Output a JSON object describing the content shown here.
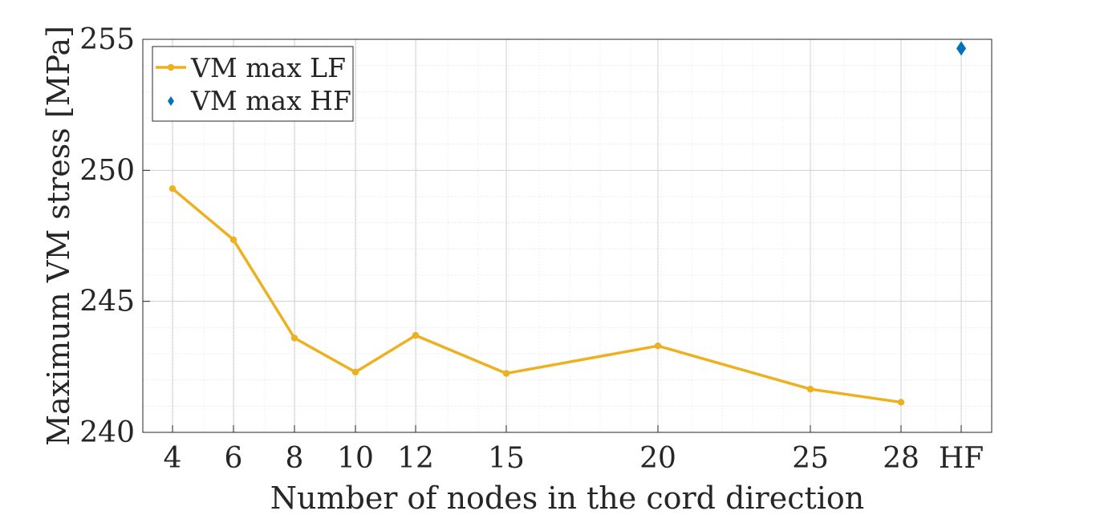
{
  "chart_data": {
    "type": "line",
    "xlabel": "Number of nodes in the cord direction",
    "ylabel": "Maximum VM stress [MPa]",
    "ylim": [
      240,
      255
    ],
    "yticks": [
      "240",
      "245",
      "250",
      "255"
    ],
    "x_ticks": [
      "4",
      "6",
      "8",
      "10",
      "12",
      "15",
      "20",
      "25",
      "28",
      "HF"
    ],
    "grid": true,
    "legend_position": "top-left",
    "series": [
      {
        "name": "VM max LF",
        "color": "#EDB120",
        "marker": "circle",
        "x": [
          4,
          6,
          8,
          10,
          12,
          15,
          20,
          25,
          28
        ],
        "y": [
          249.3,
          247.35,
          243.6,
          242.3,
          243.7,
          242.25,
          243.3,
          241.65,
          241.15
        ]
      },
      {
        "name": "VM max HF",
        "color": "#0072BD",
        "marker": "diamond",
        "x": [
          "HF"
        ],
        "y": [
          254.65
        ]
      }
    ]
  }
}
